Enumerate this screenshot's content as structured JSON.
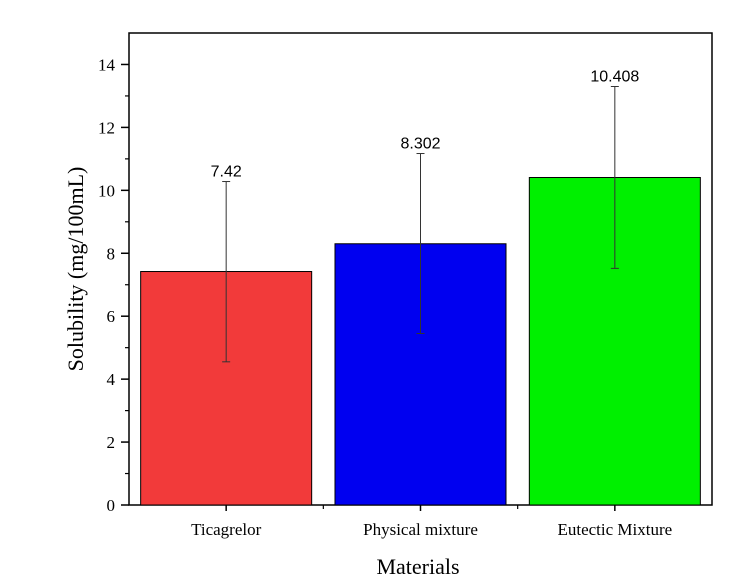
{
  "chart_data": {
    "type": "bar",
    "categories": [
      "Ticagrelor",
      "Physical mixture",
      "Eutectic Mixture"
    ],
    "values": [
      7.42,
      8.302,
      10.408
    ],
    "value_labels": [
      "7.42",
      "8.302",
      "10.408"
    ],
    "error_bars": [
      {
        "low": 4.55,
        "high": 10.28
      },
      {
        "low": 5.45,
        "high": 11.17
      },
      {
        "low": 7.52,
        "high": 13.3
      }
    ],
    "bar_colors": [
      "#f23a3a",
      "#0000f0",
      "#00f000"
    ],
    "xlabel": "Materials",
    "ylabel": "Solubility (mg/100mL)",
    "ylim": [
      0,
      15
    ],
    "yticks": [
      0,
      2,
      4,
      6,
      8,
      10,
      12,
      14
    ],
    "ytick_labels": [
      "0",
      "2",
      "4",
      "6",
      "8",
      "10",
      "12",
      "14"
    ],
    "grid": false,
    "legend": false
  }
}
